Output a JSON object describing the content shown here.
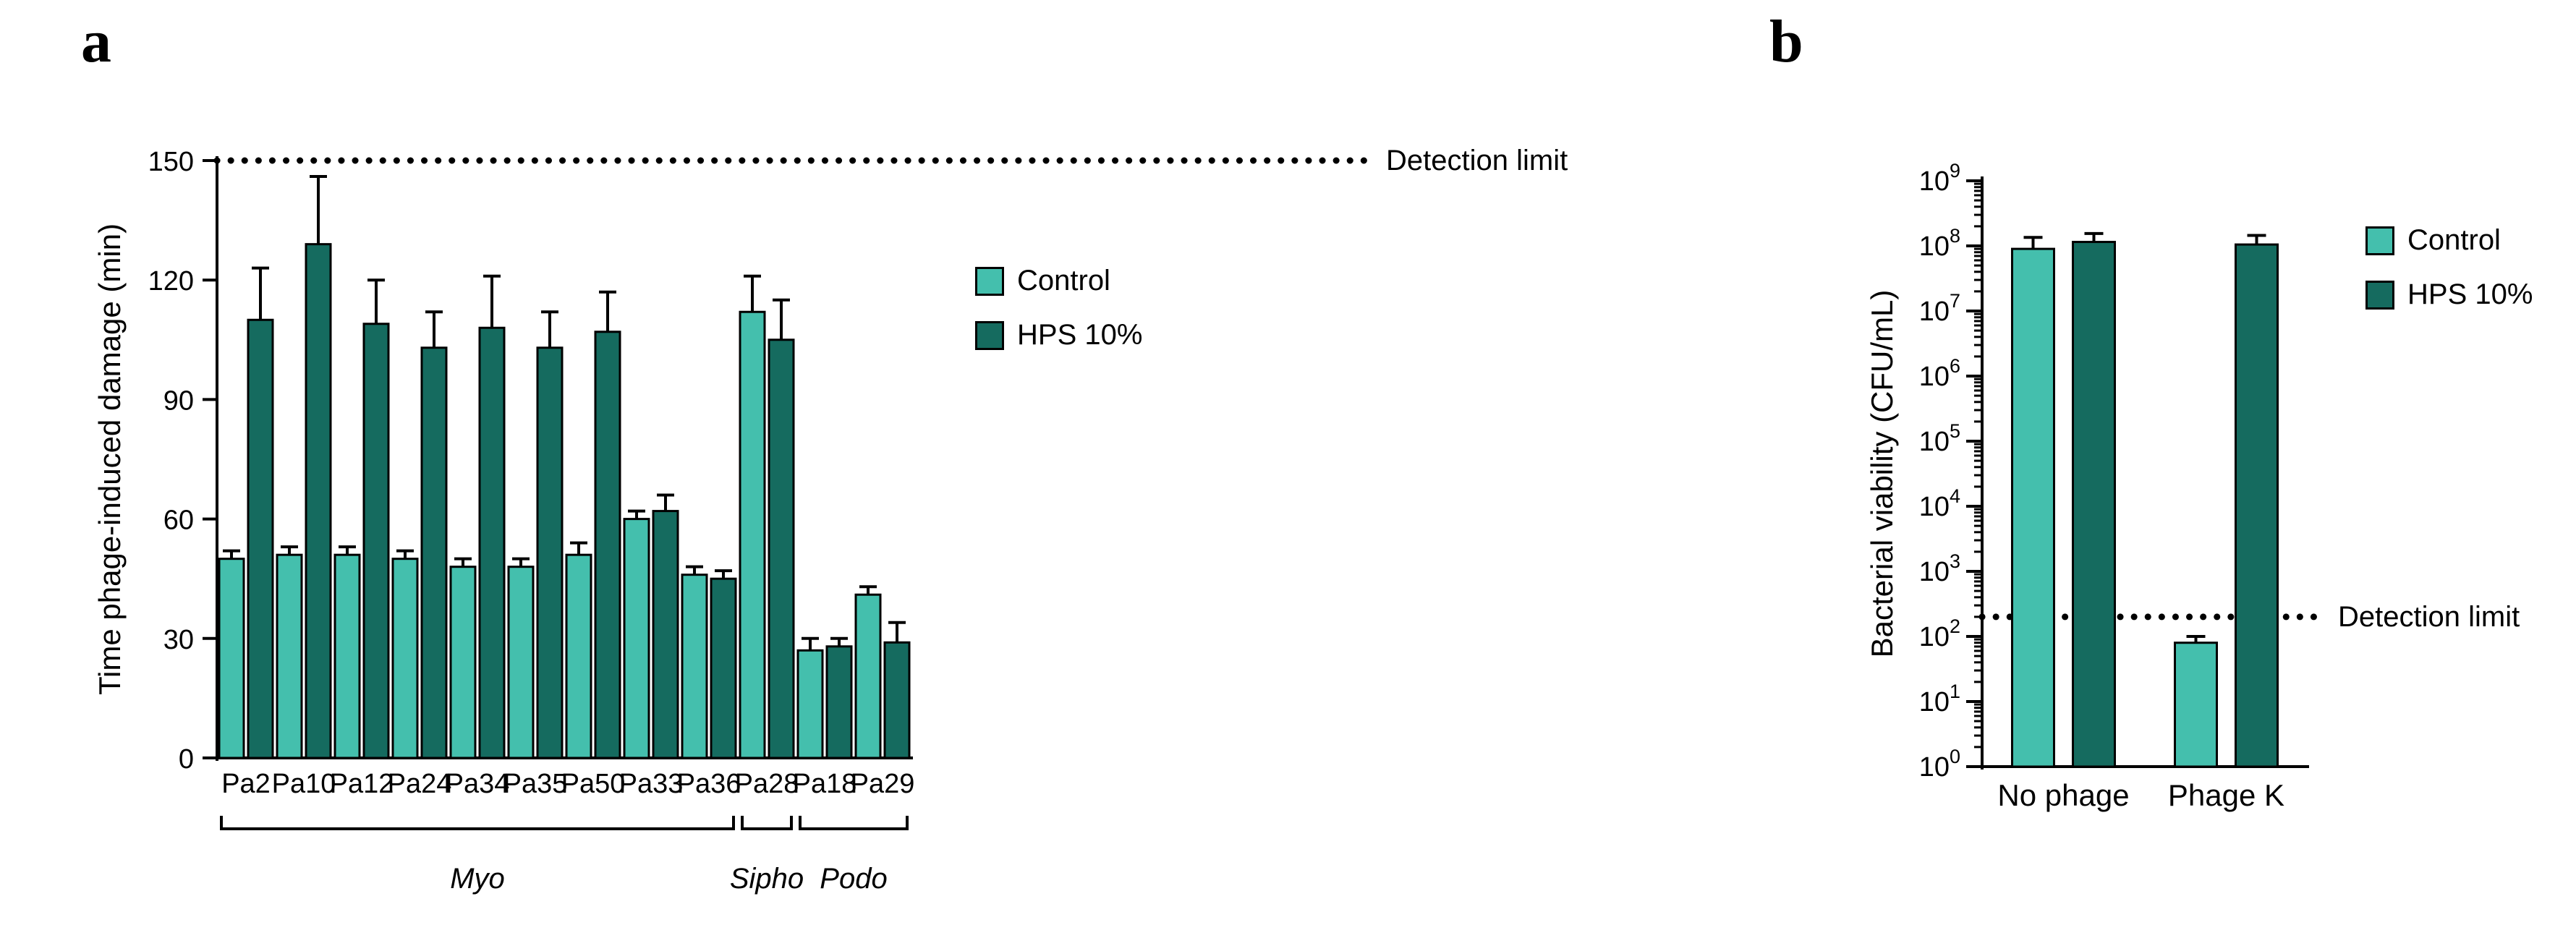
{
  "figure": {
    "background": "#ffffff",
    "panels": [
      {
        "label": "a"
      },
      {
        "label": "b"
      }
    ]
  },
  "colors": {
    "control": "#44bfad",
    "hps10": "#156b5f",
    "axis": "#000000"
  },
  "chart_data": [
    {
      "type": "bar",
      "panel": "a",
      "title": "",
      "ylabel": "Time phage-induced damage (min)",
      "yscale": "linear",
      "ylim": [
        0,
        150
      ],
      "yticks": [
        0,
        30,
        60,
        90,
        120,
        150
      ],
      "grid": false,
      "legend_position": "right",
      "categories": [
        "Pa2",
        "Pa10",
        "Pa12",
        "Pa24",
        "Pa34",
        "Pa35",
        "Pa50",
        "Pa33",
        "Pa36",
        "Pa28",
        "Pa18",
        "Pa29"
      ],
      "series": [
        {
          "name": "Control",
          "color": "#44bfad",
          "values": [
            50,
            51,
            51,
            50,
            48,
            48,
            51,
            60,
            46,
            112,
            27,
            41
          ],
          "errors_up": [
            2,
            2,
            2,
            2,
            2,
            2,
            3,
            2,
            2,
            9,
            3,
            2
          ]
        },
        {
          "name": "HPS 10%",
          "color": "#156b5f",
          "values": [
            110,
            129,
            109,
            103,
            108,
            103,
            107,
            62,
            45,
            105,
            28,
            29
          ],
          "errors_up": [
            13,
            17,
            11,
            9,
            13,
            9,
            10,
            4,
            2,
            10,
            2,
            5
          ]
        }
      ],
      "detection_limit": {
        "value": 150,
        "label": "Detection limit"
      },
      "family_groups": [
        {
          "label": "Myo",
          "start": 0,
          "end": 8
        },
        {
          "label": "Sipho",
          "start": 9,
          "end": 9
        },
        {
          "label": "Podo",
          "start": 10,
          "end": 11
        }
      ]
    },
    {
      "type": "bar",
      "panel": "b",
      "title": "",
      "ylabel": "Bacterial viability (CFU/mL)",
      "yscale": "log",
      "ylim": [
        1,
        1000000000
      ],
      "ytick_exponents": [
        0,
        1,
        2,
        3,
        4,
        5,
        6,
        7,
        8,
        9
      ],
      "grid": false,
      "legend_position": "right",
      "categories": [
        "No phage",
        "Phage K"
      ],
      "series": [
        {
          "name": "Control",
          "color": "#44bfad",
          "values": [
            90000000,
            80
          ],
          "errors_up": [
            45000000,
            20
          ]
        },
        {
          "name": "HPS 10%",
          "color": "#156b5f",
          "values": [
            115000000,
            105000000
          ],
          "errors_up": [
            40000000,
            40000000
          ]
        }
      ],
      "detection_limit": {
        "value": 200,
        "label": "Detection limit"
      }
    }
  ]
}
